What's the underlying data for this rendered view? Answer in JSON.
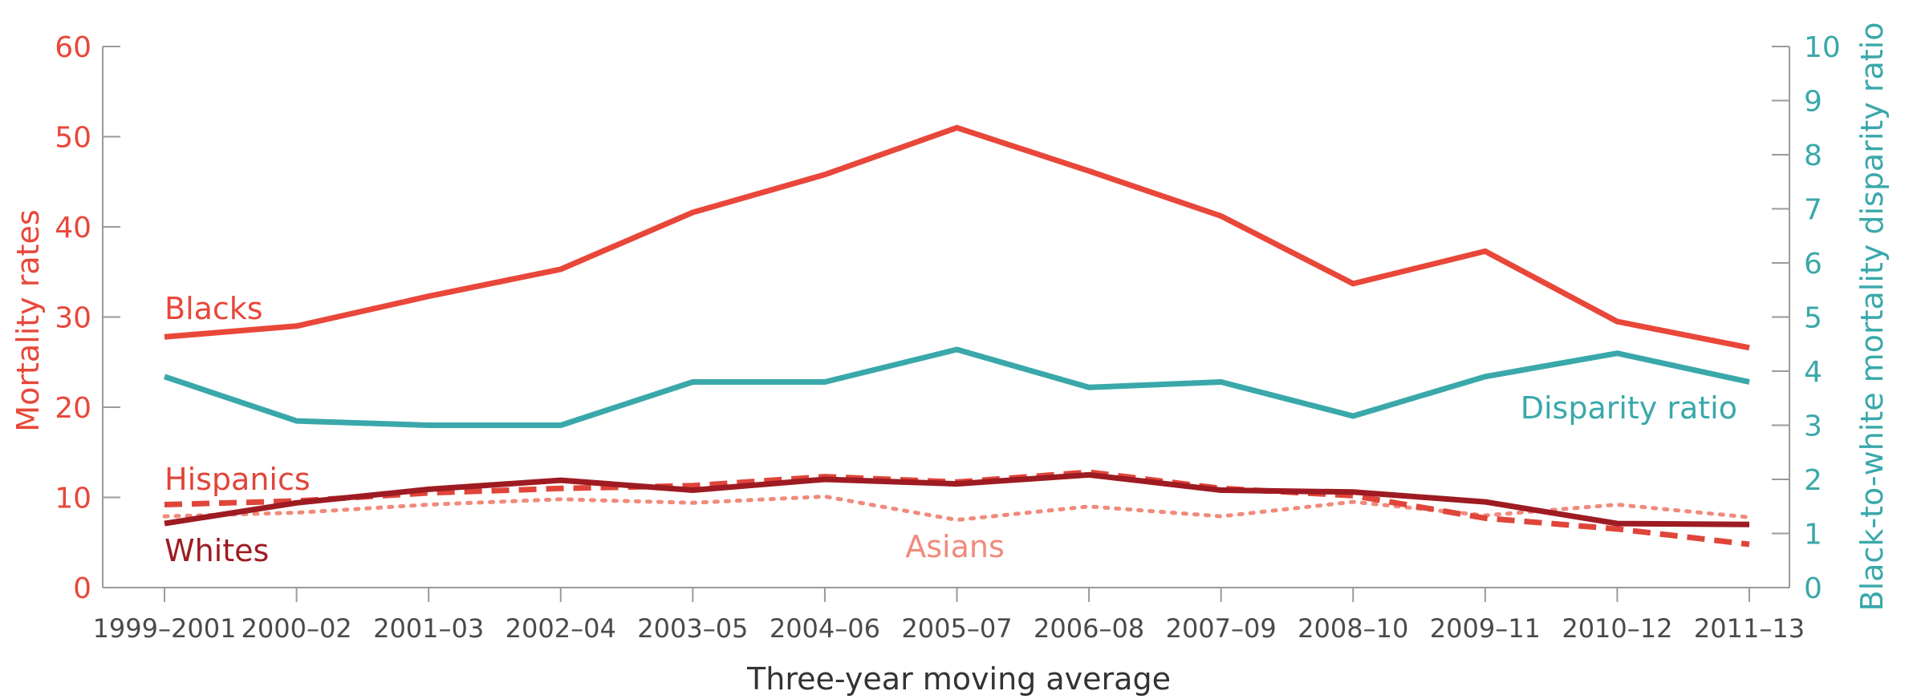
{
  "chart_data": {
    "type": "line",
    "x": [
      "1999–2001",
      "2000–02",
      "2001–03",
      "2002–04",
      "2003–05",
      "2004–06",
      "2005–07",
      "2006–08",
      "2007–09",
      "2008–10",
      "2009–11",
      "2010–12",
      "2011–13"
    ],
    "xlabel": "Three-year moving average",
    "ylabel_left": "Mortality rates",
    "ylabel_right": "Black-to-white mortality disparity ratio",
    "ylim_left": [
      0,
      60
    ],
    "yticks_left": [
      "0",
      "10",
      "20",
      "30",
      "40",
      "50",
      "60"
    ],
    "ylim_right": [
      0,
      10
    ],
    "yticks_right": [
      "0",
      "1",
      "2",
      "3",
      "4",
      "5",
      "6",
      "7",
      "8",
      "9",
      "10"
    ],
    "grid": false,
    "series": [
      {
        "name": "Blacks",
        "axis": "left",
        "style": "solid",
        "color": "#e8473a",
        "values": [
          27.8,
          29.0,
          32.3,
          35.3,
          41.6,
          45.8,
          51.0,
          46.2,
          41.2,
          33.7,
          37.3,
          29.5,
          26.6
        ]
      },
      {
        "name": "Disparity ratio",
        "axis": "right",
        "style": "solid",
        "color": "#3aa8aa",
        "values": [
          3.9,
          3.08,
          3.0,
          3.0,
          3.8,
          3.8,
          4.4,
          3.7,
          3.8,
          3.17,
          3.9,
          4.33,
          3.8
        ]
      },
      {
        "name": "Hispanics",
        "axis": "left",
        "style": "dashed",
        "color": "#e0453a",
        "values": [
          9.2,
          9.6,
          10.5,
          11.0,
          11.3,
          12.3,
          11.7,
          12.8,
          11.0,
          10.2,
          7.7,
          6.5,
          4.8
        ]
      },
      {
        "name": "Whites",
        "axis": "left",
        "style": "solid",
        "color": "#9e1b22",
        "values": [
          7.1,
          9.4,
          10.9,
          11.9,
          10.8,
          12.0,
          11.5,
          12.5,
          10.8,
          10.6,
          9.5,
          7.1,
          7.0
        ]
      },
      {
        "name": "Asians",
        "axis": "left",
        "style": "dotted",
        "color": "#f08a7c",
        "values": [
          7.9,
          8.3,
          9.2,
          9.8,
          9.4,
          10.1,
          7.5,
          9.0,
          7.9,
          9.5,
          8.0,
          9.2,
          7.8
        ]
      }
    ]
  }
}
